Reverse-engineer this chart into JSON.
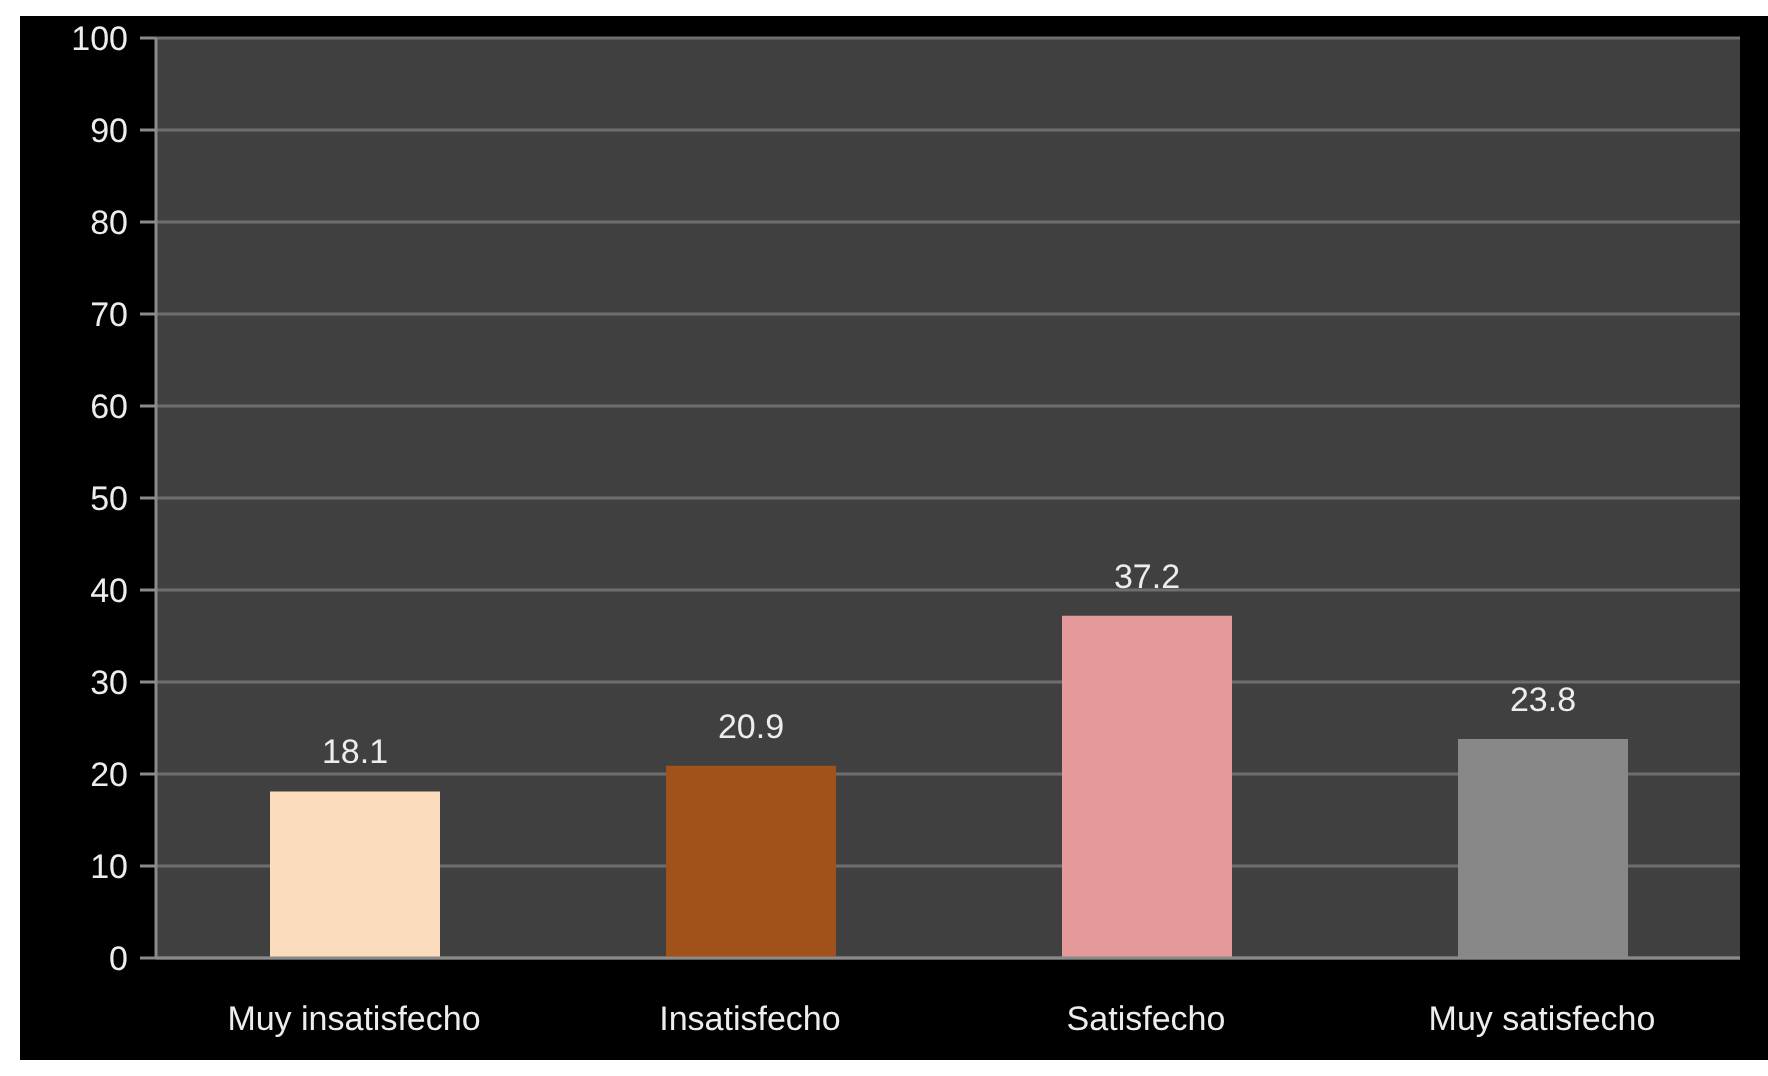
{
  "chart_data": {
    "type": "bar",
    "categories": [
      "Muy insatisfecho",
      "Insatisfecho",
      "Satisfecho",
      "Muy satisfecho"
    ],
    "values": [
      18.1,
      20.9,
      37.2,
      23.8
    ],
    "colors": [
      "#fbdcbc",
      "#a0521a",
      "#e49a9a",
      "#888888"
    ],
    "ylim": [
      0,
      100
    ],
    "yticks": [
      0,
      10,
      20,
      30,
      40,
      50,
      60,
      70,
      80,
      90,
      100
    ],
    "grid": "y",
    "data_labels": true
  }
}
